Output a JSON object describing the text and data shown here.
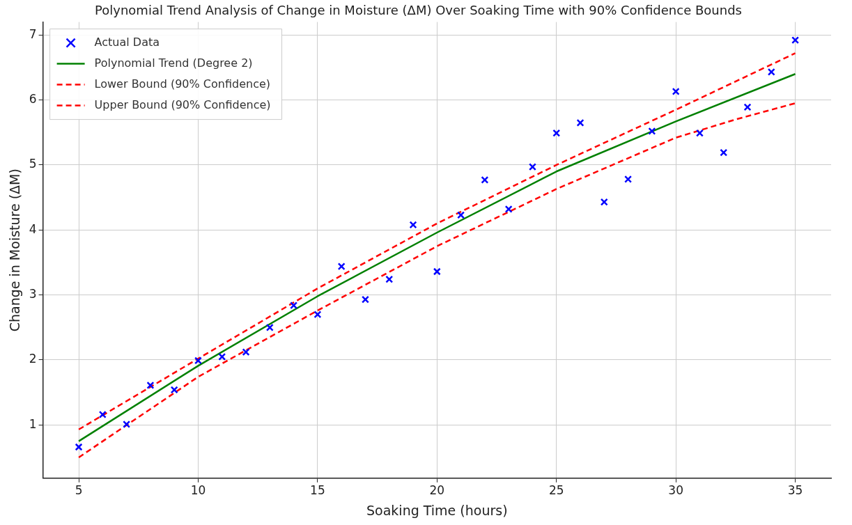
{
  "chart_data": {
    "type": "line",
    "title": "Polynomial Trend Analysis of Change in Moisture (ΔM) Over Soaking Time with 90% Confidence Bounds",
    "xlabel": "Soaking Time (hours)",
    "ylabel": "Change in Moisture (ΔM)",
    "xlim": [
      3.5,
      36.5
    ],
    "ylim": [
      0.18,
      7.2
    ],
    "xticks": [
      5,
      10,
      15,
      20,
      25,
      30,
      35
    ],
    "yticks": [
      1,
      2,
      3,
      4,
      5,
      6,
      7
    ],
    "grid": true,
    "legend": "top left",
    "series": [
      {
        "name": "Actual Data",
        "type": "scatter",
        "marker": "cross",
        "color": "#0000ff",
        "x": [
          5,
          6,
          7,
          8,
          9,
          10,
          11,
          12,
          13,
          14,
          15,
          16,
          17,
          18,
          19,
          20,
          21,
          22,
          23,
          24,
          25,
          26,
          27,
          28,
          29,
          30,
          31,
          32,
          33,
          34,
          35
        ],
        "values": [
          0.66,
          1.16,
          1.01,
          1.61,
          1.54,
          1.99,
          2.05,
          2.12,
          2.5,
          2.84,
          2.7,
          3.44,
          2.93,
          3.24,
          4.08,
          3.36,
          4.23,
          4.77,
          4.32,
          4.97,
          5.49,
          5.65,
          4.43,
          4.78,
          5.52,
          6.13,
          5.49,
          5.19,
          5.89,
          6.43,
          6.92
        ]
      },
      {
        "name": "Polynomial Trend (Degree 2)",
        "type": "line",
        "color": "#008000",
        "marker": "none",
        "line_style": "solid",
        "x": [
          5,
          10,
          15,
          20,
          25,
          30,
          35
        ],
        "values": [
          0.75,
          1.91,
          2.98,
          3.96,
          4.9,
          5.67,
          6.4
        ]
      },
      {
        "name": "Lower Bound (90% Confidence)",
        "type": "line",
        "marker": "none",
        "color": "#ff0000",
        "line_style": "dashed",
        "x": [
          5,
          10,
          15,
          20,
          25,
          30,
          32.5,
          35
        ],
        "values": [
          0.5,
          1.74,
          2.76,
          3.75,
          4.63,
          5.42,
          5.7,
          5.95
        ]
      },
      {
        "name": "Upper Bound (90% Confidence)",
        "type": "line",
        "marker": "none",
        "color": "#ff0000",
        "line_style": "dashed",
        "x": [
          5,
          10,
          15,
          20,
          25,
          30,
          35
        ],
        "values": [
          0.93,
          2.02,
          3.1,
          4.1,
          5.0,
          5.85,
          6.72
        ]
      }
    ]
  }
}
